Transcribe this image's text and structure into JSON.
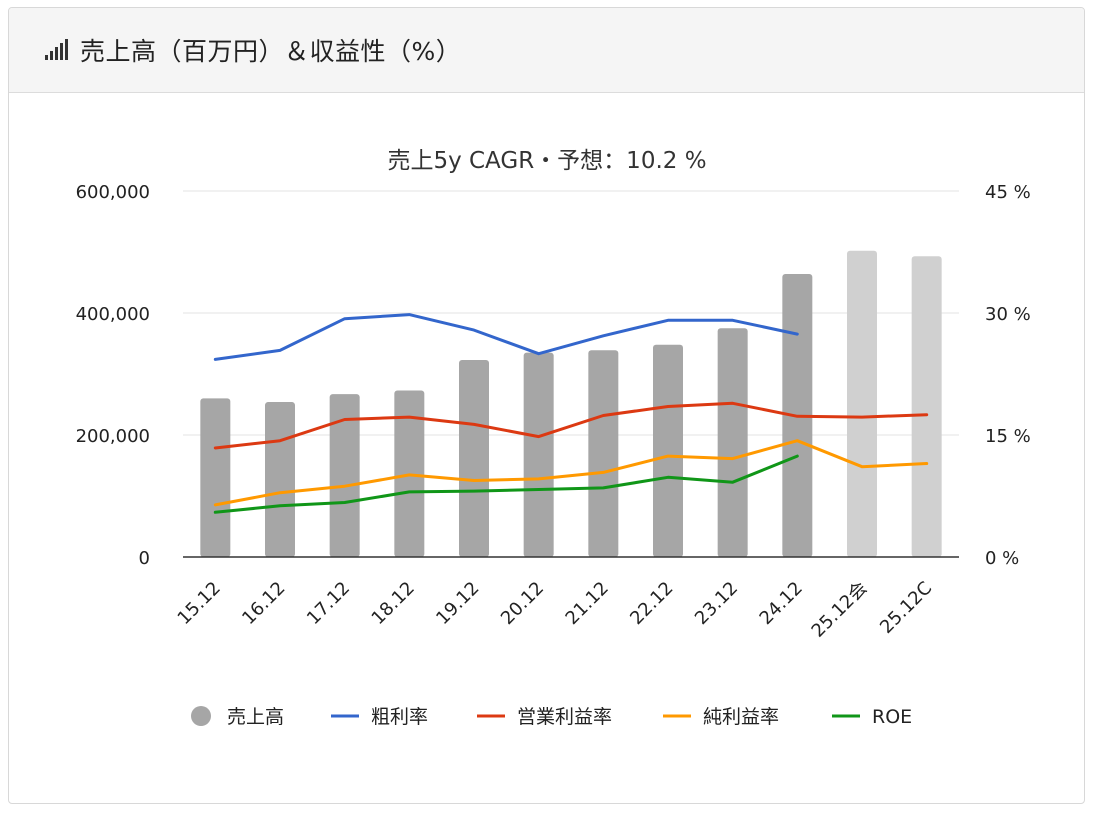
{
  "panel": {
    "title": "売上高（百万円）＆収益性（%）",
    "icon": "signal-bars-icon"
  },
  "chart_data": {
    "type": "bar",
    "title": "売上5y CAGR・予想：10.2 %",
    "categories": [
      "15.12",
      "16.12",
      "17.12",
      "18.12",
      "19.12",
      "20.12",
      "21.12",
      "22.12",
      "23.12",
      "24.12",
      "25.12会",
      "25.12C"
    ],
    "y_left": {
      "min": 0,
      "max": 600000,
      "ticks": [
        "0",
        "200,000",
        "400,000",
        "600,000"
      ],
      "tick_values": [
        0,
        200000,
        400000,
        600000
      ]
    },
    "y_right": {
      "min": 0,
      "max": 45,
      "ticks": [
        "0 %",
        "15 %",
        "30 %",
        "45 %"
      ],
      "tick_values": [
        0,
        15,
        30,
        45
      ]
    },
    "grid": true,
    "legend_position": "bottom",
    "series": [
      {
        "name": "売上高",
        "kind": "bar",
        "axis": "left",
        "color": "#a6a6a6",
        "forecast_color": "#d0d0d0",
        "values": [
          260000,
          254000,
          267000,
          273000,
          323000,
          335000,
          339000,
          348000,
          375000,
          464000,
          502000,
          493000
        ],
        "forecast": [
          false,
          false,
          false,
          false,
          false,
          false,
          false,
          false,
          false,
          false,
          true,
          true
        ]
      },
      {
        "name": "粗利率",
        "kind": "line",
        "axis": "right",
        "color": "#3366cc",
        "values": [
          24.3,
          25.4,
          29.3,
          29.8,
          27.9,
          25.0,
          27.2,
          29.1,
          29.1,
          27.4,
          null,
          null
        ]
      },
      {
        "name": "営業利益率",
        "kind": "line",
        "axis": "right",
        "color": "#dc3912",
        "values": [
          13.4,
          14.3,
          16.9,
          17.2,
          16.3,
          14.8,
          17.4,
          18.5,
          18.9,
          17.3,
          17.2,
          17.5
        ]
      },
      {
        "name": "純利益率",
        "kind": "line",
        "axis": "right",
        "color": "#ff9900",
        "values": [
          6.4,
          7.9,
          8.7,
          10.1,
          9.4,
          9.6,
          10.4,
          12.4,
          12.1,
          14.3,
          11.1,
          11.5
        ]
      },
      {
        "name": "ROE",
        "kind": "line",
        "axis": "right",
        "color": "#109618",
        "values": [
          5.5,
          6.3,
          6.7,
          8.0,
          8.1,
          8.3,
          8.5,
          9.8,
          9.2,
          12.4,
          null,
          null
        ]
      }
    ]
  }
}
